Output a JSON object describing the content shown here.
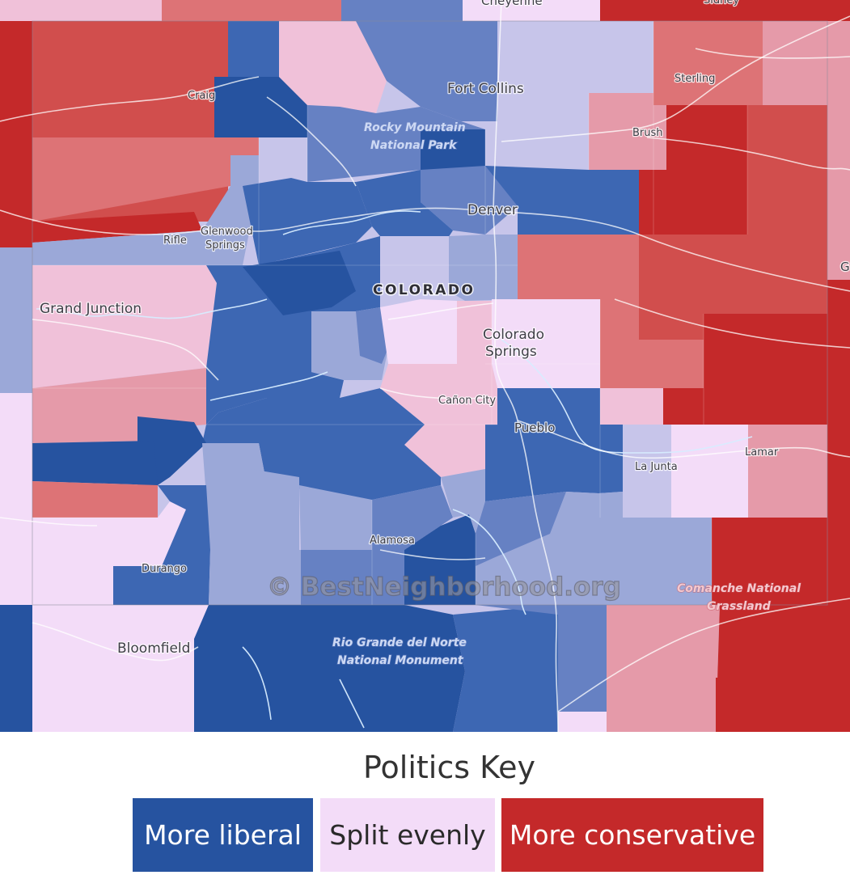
{
  "map": {
    "watermark": "© BestNeighborhood.org",
    "state_label": "COLORADO",
    "cities": [
      {
        "id": "cheyenne",
        "name": "Cheyenne"
      },
      {
        "id": "sidney",
        "name": "Sidney"
      },
      {
        "id": "fort-collins",
        "name": "Fort Collins"
      },
      {
        "id": "sterling",
        "name": "Sterling"
      },
      {
        "id": "craig",
        "name": "Craig"
      },
      {
        "id": "brush",
        "name": "Brush"
      },
      {
        "id": "denver",
        "name": "Denver"
      },
      {
        "id": "rifle",
        "name": "Rifle"
      },
      {
        "id": "glenwood-1",
        "name": "Glenwood"
      },
      {
        "id": "glenwood-2",
        "name": "Springs"
      },
      {
        "id": "grand-junction",
        "name": "Grand Junction"
      },
      {
        "id": "colorado-springs-1",
        "name": "Colorado"
      },
      {
        "id": "colorado-springs-2",
        "name": "Springs"
      },
      {
        "id": "canon-city",
        "name": "Cañon City"
      },
      {
        "id": "pueblo",
        "name": "Pueblo"
      },
      {
        "id": "lamar",
        "name": "Lamar"
      },
      {
        "id": "la-junta",
        "name": "La Junta"
      },
      {
        "id": "alamosa",
        "name": "Alamosa"
      },
      {
        "id": "durango",
        "name": "Durango"
      },
      {
        "id": "bloomfield",
        "name": "Bloomfield"
      },
      {
        "id": "edge-g",
        "name": "G"
      }
    ],
    "parks": [
      {
        "id": "rmnp-1",
        "name": "Rocky Mountain"
      },
      {
        "id": "rmnp-2",
        "name": "National Park"
      },
      {
        "id": "comanche-1",
        "name": "Comanche National"
      },
      {
        "id": "comanche-2",
        "name": "Grassland"
      },
      {
        "id": "riogrande-1",
        "name": "Rio Grande del Norte"
      },
      {
        "id": "riogrande-2",
        "name": "National Monument"
      }
    ]
  },
  "legend": {
    "title": "Politics Key",
    "items": [
      {
        "label": "More liberal",
        "color": "#2653a0"
      },
      {
        "label": "Split evenly",
        "color": "#f3dcf8"
      },
      {
        "label": "More conservative",
        "color": "#c4292a"
      }
    ]
  },
  "colors": {
    "liberal_strong": "#2653a0",
    "liberal": "#3d67b3",
    "liberal_mid": "#6681c3",
    "liberal_light": "#9ba8d8",
    "lavender": "#c7c5ea",
    "split": "#f3dcf8",
    "pink": "#f0c1d9",
    "rose": "#e59aa9",
    "conservative_light": "#dd7376",
    "conservative": "#d14e4d",
    "conservative_strong": "#c4292a"
  }
}
